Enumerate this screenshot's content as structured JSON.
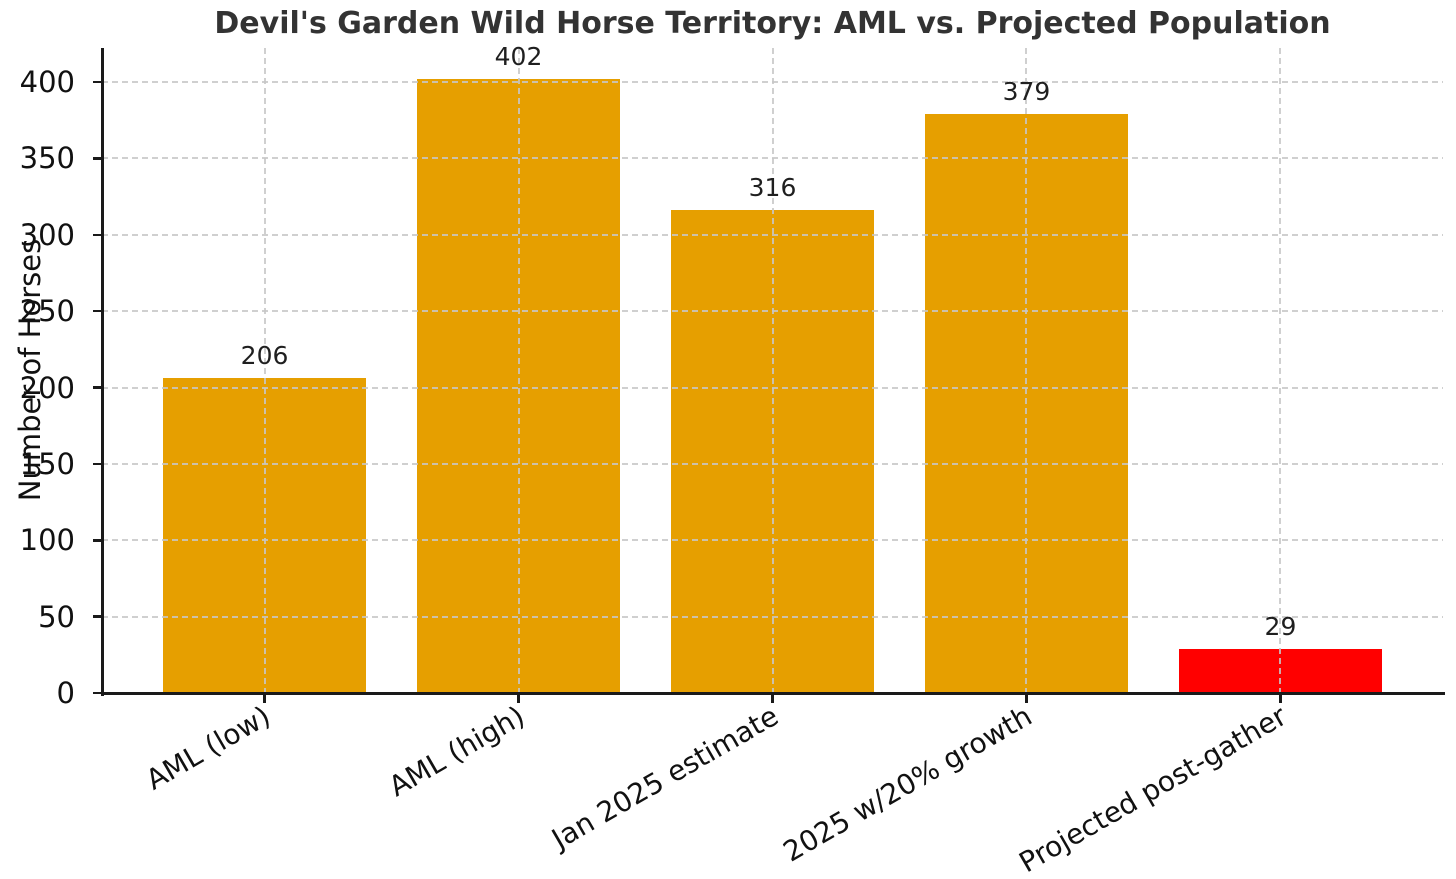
{
  "chart_data": {
    "type": "bar",
    "title": "Devil's Garden Wild Horse Territory: AML vs. Projected Population",
    "xlabel": "",
    "ylabel": "Number of Horses",
    "categories": [
      "AML (low)",
      "AML (high)",
      "Jan 2025 estimate",
      "2025 w/20% growth",
      "Projected post-gather"
    ],
    "values": [
      206,
      402,
      316,
      379,
      29
    ],
    "value_labels": [
      "206",
      "402",
      "316",
      "379",
      "29"
    ],
    "bar_colors": [
      "#E69F00",
      "#E69F00",
      "#E69F00",
      "#E69F00",
      "#FF0000"
    ],
    "yticks": [
      0,
      50,
      100,
      150,
      200,
      250,
      300,
      350,
      400
    ],
    "ylim": [
      0,
      422
    ],
    "x_tick_rotation_deg": 30,
    "grid": "both axes, dashed, drawn above bars",
    "legend_position": "none",
    "colors": {
      "grid": "#c7c7c7",
      "spine": "#1a1a1a",
      "text": "#111111",
      "title": "#333333"
    }
  }
}
